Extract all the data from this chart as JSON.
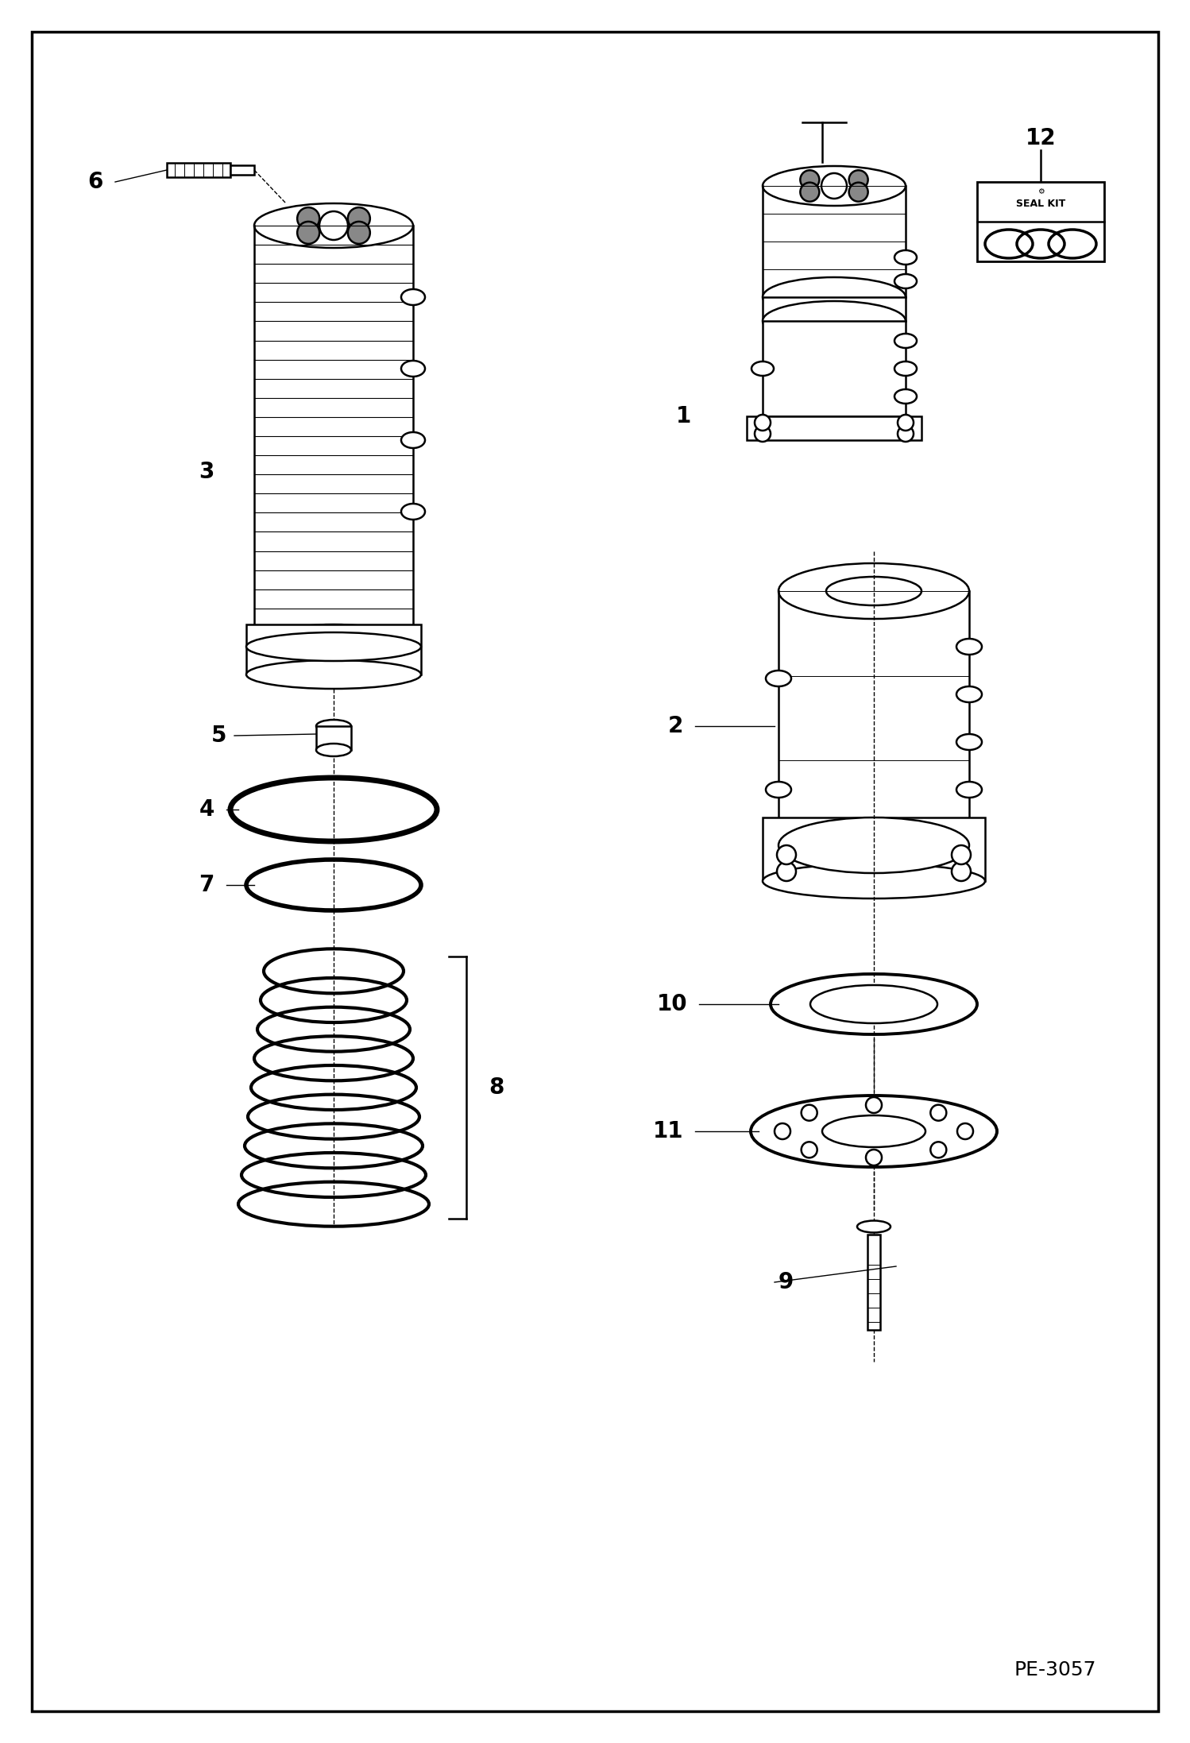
{
  "bg_color": "#ffffff",
  "line_color": "#000000",
  "fig_width": 14.98,
  "fig_height": 21.94,
  "dpi": 100,
  "footer_text": "PE-3057",
  "label_fontsize": 16
}
